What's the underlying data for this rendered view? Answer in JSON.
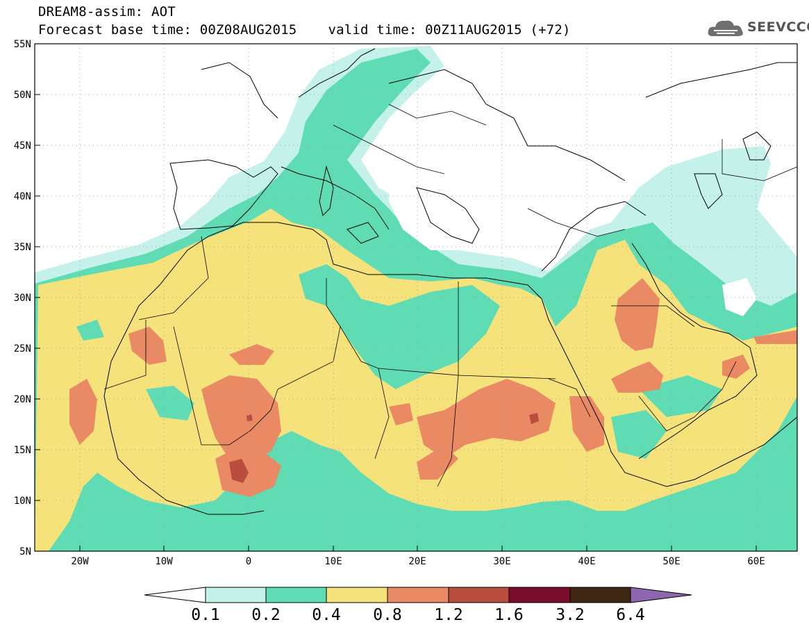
{
  "header": {
    "line1": "DREAM8-assim: AOT",
    "base_time": "Forecast base time: 00Z08AUG2015",
    "valid_time": "valid time: 00Z11AUG2015 (+72)"
  },
  "logo": {
    "text": "SEEVCCC",
    "icon": "cloud-icon"
  },
  "axes": {
    "lat_labels": [
      "55N",
      "50N",
      "45N",
      "40N",
      "35N",
      "30N",
      "25N",
      "20N",
      "15N",
      "10N",
      "5N"
    ],
    "lon_labels": [
      "20W",
      "10W",
      "0",
      "10E",
      "20E",
      "30E",
      "40E",
      "50E",
      "60E"
    ]
  },
  "colorbar": {
    "labels": [
      "0.1",
      "0.2",
      "0.4",
      "0.8",
      "1.2",
      "1.6",
      "3.2",
      "6.4"
    ],
    "colors": [
      "#c4f1ea",
      "#5fdcb4",
      "#f6e27a",
      "#e98a64",
      "#b94d3f",
      "#7a0d2b",
      "#3e2614",
      "#8c67ad"
    ]
  }
}
